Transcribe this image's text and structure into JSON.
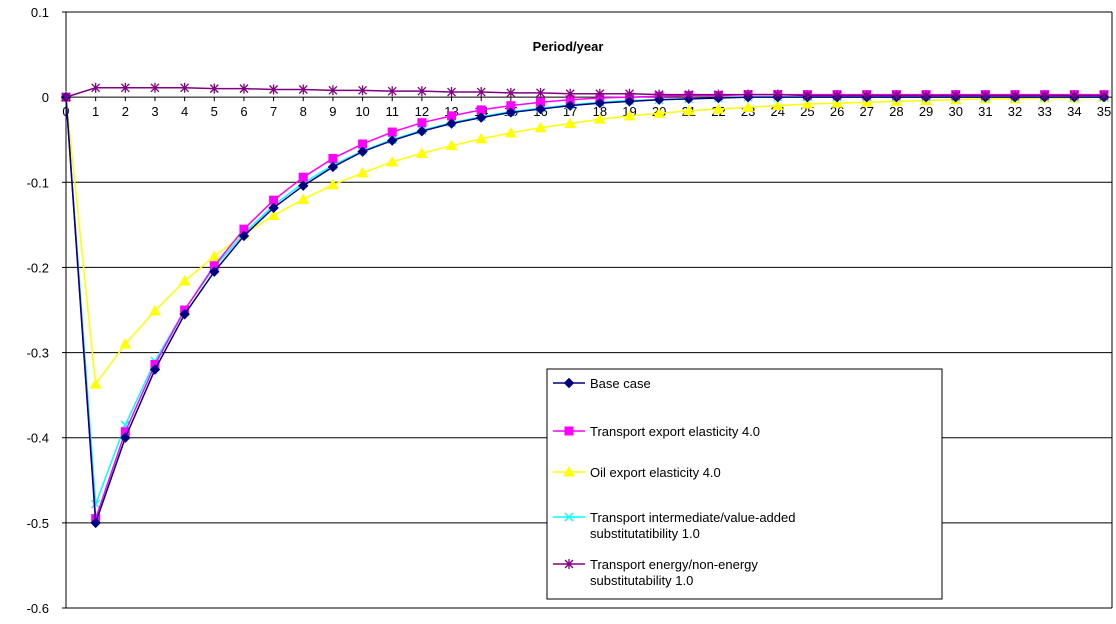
{
  "chart_data": {
    "type": "line",
    "title": "Period/year",
    "xlabel": "",
    "ylabel": "",
    "xlim": [
      0,
      35
    ],
    "ylim": [
      -0.6,
      0.1
    ],
    "yticks": [
      0.1,
      0,
      -0.1,
      -0.2,
      -0.3,
      -0.4,
      -0.5,
      -0.6
    ],
    "ytick_labels": [
      "0.1",
      "0",
      "-0.1",
      "-0.2",
      "-0.3",
      "-0.4",
      "-0.5",
      "-0.6"
    ],
    "x": [
      0,
      1,
      2,
      3,
      4,
      5,
      6,
      7,
      8,
      9,
      10,
      11,
      12,
      13,
      14,
      15,
      16,
      17,
      18,
      19,
      20,
      21,
      22,
      23,
      24,
      25,
      26,
      27,
      28,
      29,
      30,
      31,
      32,
      33,
      34,
      35
    ],
    "x_tick_labels": [
      "0",
      "1",
      "2",
      "3",
      "4",
      "5",
      "6",
      "7",
      "8",
      "9",
      "10",
      "11",
      "12",
      "13",
      "14",
      "15",
      "16",
      "17",
      "18",
      "19",
      "20",
      "21",
      "22",
      "23",
      "24",
      "25",
      "26",
      "27",
      "28",
      "29",
      "30",
      "31",
      "32",
      "33",
      "34",
      "35"
    ],
    "grid": "horizontal",
    "legend_position": "lower-right-inside",
    "series": [
      {
        "name": "Base case",
        "color": "#000080",
        "marker": "diamond",
        "values": [
          0,
          -0.5,
          -0.4,
          -0.32,
          -0.255,
          -0.205,
          -0.163,
          -0.13,
          -0.104,
          -0.082,
          -0.064,
          -0.051,
          -0.04,
          -0.031,
          -0.024,
          -0.018,
          -0.014,
          -0.01,
          -0.007,
          -0.005,
          -0.003,
          -0.002,
          -0.001,
          0,
          0,
          0,
          0,
          0,
          0,
          0,
          0,
          0,
          0,
          0,
          0,
          0
        ]
      },
      {
        "name": "Transport export elasticity 4.0",
        "color": "#FF00FF",
        "marker": "square",
        "values": [
          0,
          -0.495,
          -0.393,
          -0.314,
          -0.25,
          -0.198,
          -0.155,
          -0.121,
          -0.094,
          -0.072,
          -0.055,
          -0.041,
          -0.03,
          -0.022,
          -0.015,
          -0.01,
          -0.006,
          -0.003,
          -0.001,
          0,
          0.001,
          0.002,
          0.002,
          0.003,
          0.003,
          0.003,
          0.003,
          0.003,
          0.003,
          0.003,
          0.003,
          0.003,
          0.003,
          0.003,
          0.003,
          0.003
        ]
      },
      {
        "name": "Oil export elasticity 4.0",
        "color": "#FFFF00",
        "marker": "triangle",
        "values": [
          0,
          -0.337,
          -0.29,
          -0.251,
          -0.216,
          -0.187,
          -0.161,
          -0.139,
          -0.12,
          -0.103,
          -0.089,
          -0.076,
          -0.066,
          -0.057,
          -0.049,
          -0.042,
          -0.036,
          -0.031,
          -0.026,
          -0.022,
          -0.019,
          -0.016,
          -0.014,
          -0.012,
          -0.01,
          -0.008,
          -0.007,
          -0.006,
          -0.005,
          -0.004,
          -0.003,
          -0.002,
          -0.002,
          -0.001,
          -0.001,
          0
        ]
      },
      {
        "name": "Transport intermediate/value-added substitutatibility 1.0",
        "color": "#00FFFF",
        "marker": "x",
        "values": [
          0,
          -0.478,
          -0.385,
          -0.31,
          -0.25,
          -0.2,
          -0.16,
          -0.127,
          -0.101,
          -0.08,
          -0.063,
          -0.05,
          -0.039,
          -0.03,
          -0.023,
          -0.017,
          -0.013,
          -0.009,
          -0.006,
          -0.004,
          -0.003,
          -0.002,
          -0.001,
          0,
          0,
          0,
          0,
          0,
          0,
          0,
          0,
          0,
          0,
          0,
          0,
          0
        ]
      },
      {
        "name": "Transport energy/non-energy substitutability 1.0",
        "color": "#800080",
        "marker": "star",
        "values": [
          0,
          0.011,
          0.011,
          0.011,
          0.011,
          0.01,
          0.01,
          0.009,
          0.009,
          0.008,
          0.008,
          0.007,
          0.007,
          0.006,
          0.006,
          0.005,
          0.005,
          0.004,
          0.004,
          0.004,
          0.003,
          0.003,
          0.003,
          0.003,
          0.003,
          0.002,
          0.002,
          0.002,
          0.002,
          0.002,
          0.002,
          0.002,
          0.002,
          0.002,
          0.002,
          0.002
        ]
      }
    ]
  }
}
